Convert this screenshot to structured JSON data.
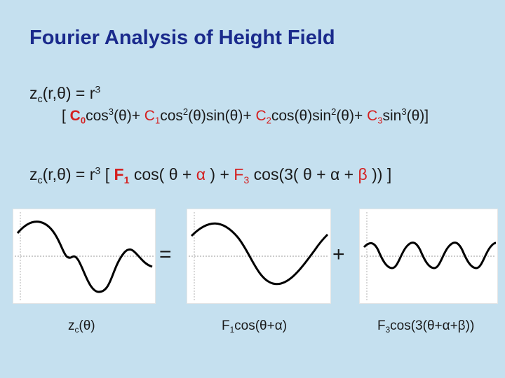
{
  "title": "Fourier Analysis of Height Field",
  "eq1": {
    "lhs": "z",
    "lhs_sub": "c",
    "args": "(r,θ) = r",
    "power": "3"
  },
  "eq2": {
    "open": "[ ",
    "c0": "C",
    "c0_sub": "0",
    "t1": "cos",
    "t1_sup": "3",
    "t1_b": "(θ)+ ",
    "c1": "C",
    "c1_sub": "1",
    "t2": "cos",
    "t2_sup": "2",
    "t2_b": "(θ)sin(θ)+ ",
    "c2": "C",
    "c2_sub": "2",
    "t3": "cos(θ)sin",
    "t3_sup": "2",
    "t3_b": "(θ)+ ",
    "c3": "C",
    "c3_sub": "3",
    "t4": "sin",
    "t4_sup": "3",
    "t4_b": "(θ)]"
  },
  "eq3": {
    "lhs": "z",
    "lhs_sub": "c",
    "args": "(r,θ) = r",
    "power": "3",
    "open": " [ ",
    "f1": "F",
    "f1_sub": "1",
    "cos1": " cos( θ + ",
    "alpha": "α",
    "mid": " ) + ",
    "f3": "F",
    "f3_sub": "3",
    "cos3": " cos(3( θ + α + ",
    "beta": "β",
    "close": " )) ]"
  },
  "operators": {
    "equals": "=",
    "plus": "+"
  },
  "captions": {
    "zc": "z",
    "zc_sub": "c",
    "zc_tail": "(θ)",
    "f1_a": "F",
    "f1_sub": "1",
    "f1_b": "cos(θ+α)",
    "f3_a": "F",
    "f3_sub": "3",
    "f3_b": "cos(3(θ+α+β))"
  },
  "colors": {
    "title": "#1a2a8c",
    "accent_red": "#d42020",
    "background": "#c5e0ef",
    "curve": "#000000"
  }
}
